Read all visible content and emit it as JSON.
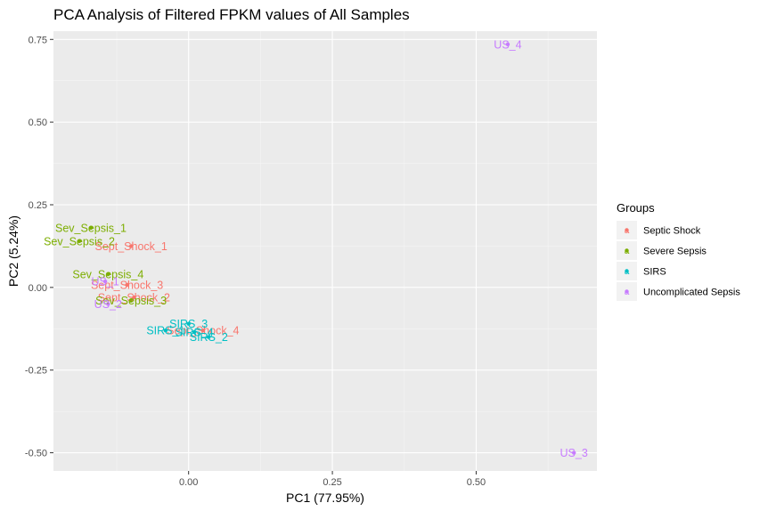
{
  "chart_data": {
    "type": "scatter",
    "title": "PCA Analysis of Filtered FPKM values of All Samples",
    "xlabel": "PC1 (77.95%)",
    "ylabel": "PC2 (5.24%)",
    "xlim": [
      -0.235,
      0.71
    ],
    "ylim": [
      -0.555,
      0.775
    ],
    "xticks": [
      0,
      0.25,
      0.5
    ],
    "xtick_labels": [
      "0.00",
      "0.25",
      "0.50"
    ],
    "yticks": [
      -0.5,
      -0.25,
      0,
      0.25,
      0.5,
      0.75
    ],
    "ytick_labels": [
      "-0.50",
      "-0.25",
      "0.00",
      "0.25",
      "0.50",
      "0.75"
    ],
    "grid": true,
    "legend": {
      "title": "Groups",
      "position": "right"
    },
    "series": [
      {
        "name": "Septic Shock",
        "color": "#F8766D",
        "points": [
          {
            "label": "Sept_Shock_1",
            "x": -0.1,
            "y": 0.125
          },
          {
            "label": "Sept_Shock_2",
            "x": -0.095,
            "y": -0.03
          },
          {
            "label": "Sept_Shock_3",
            "x": -0.107,
            "y": 0.008
          },
          {
            "label": "Sept_Shock_4",
            "x": 0.025,
            "y": -0.13
          }
        ]
      },
      {
        "name": "Severe Sepsis",
        "color": "#7CAE00",
        "points": [
          {
            "label": "Sev_Sepsis_1",
            "x": -0.17,
            "y": 0.18
          },
          {
            "label": "Sev_Sepsis_2",
            "x": -0.19,
            "y": 0.14
          },
          {
            "label": "Sev_Sepsis_3",
            "x": -0.1,
            "y": -0.04
          },
          {
            "label": "Sev_Sepsis_4",
            "x": -0.14,
            "y": 0.04
          }
        ]
      },
      {
        "name": "SIRS",
        "color": "#00BFC4",
        "points": [
          {
            "label": "SIRS_1",
            "x": -0.04,
            "y": -0.13
          },
          {
            "label": "SIRS_2",
            "x": 0.035,
            "y": -0.15
          },
          {
            "label": "SIRS_3",
            "x": 0.0,
            "y": -0.11
          },
          {
            "label": "SIRS_4",
            "x": 0.01,
            "y": -0.135
          }
        ]
      },
      {
        "name": "Uncomplicated Sepsis",
        "color": "#C77CFF",
        "points": [
          {
            "label": "US_1",
            "x": -0.145,
            "y": 0.018
          },
          {
            "label": "US_2",
            "x": -0.14,
            "y": -0.05
          },
          {
            "label": "US_3",
            "x": 0.67,
            "y": -0.5
          },
          {
            "label": "US_4",
            "x": 0.555,
            "y": 0.735
          }
        ]
      }
    ]
  }
}
